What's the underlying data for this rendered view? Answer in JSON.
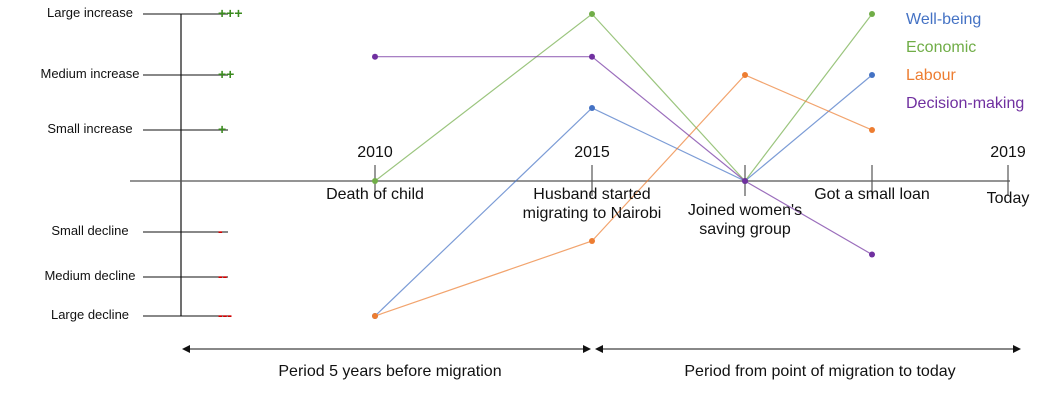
{
  "chart_data": {
    "type": "line",
    "categories": [
      "Death of child",
      "Husband started migrating to Nairobi",
      "Joined women's saving group",
      "Got a small loan",
      "Today"
    ],
    "years": [
      "2010",
      "2015",
      null,
      null,
      "2019"
    ],
    "ylim": [
      -3,
      3
    ],
    "yticks": [
      {
        "value": 3,
        "label": "Large increase",
        "symbol": "+++"
      },
      {
        "value": 2,
        "label": "Medium increase",
        "symbol": "++"
      },
      {
        "value": 1,
        "label": "Small increase",
        "symbol": "+"
      },
      {
        "value": -1,
        "label": "Small decline",
        "symbol": "-"
      },
      {
        "value": -2,
        "label": "Medium decline",
        "symbol": "--"
      },
      {
        "value": -3,
        "label": "Large decline",
        "symbol": "---"
      }
    ],
    "series": [
      {
        "name": "Well-being",
        "color": "#4472c4",
        "values": [
          -3,
          1.4,
          0,
          2,
          null
        ]
      },
      {
        "name": "Economic",
        "color": "#70ad47",
        "values": [
          0,
          3,
          0,
          3,
          null
        ]
      },
      {
        "name": "Labour",
        "color": "#ed7d31",
        "values": [
          -3,
          -1.2,
          2,
          1,
          null
        ]
      },
      {
        "name": "Decision-making",
        "color": "#7030a0",
        "values": [
          2.3,
          2.3,
          0,
          -1.5,
          null
        ]
      }
    ],
    "periods": [
      "Period 5 years before migration",
      "Period from point of migration to today"
    ]
  }
}
